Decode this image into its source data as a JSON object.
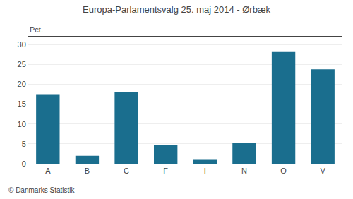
{
  "chart_data": {
    "type": "bar",
    "title": "Europa-Parlamentsvalg 25. maj 2014 - Ørbæk",
    "ylabel": "Pct.",
    "annotations": [
      "© Danmarks Statistik"
    ],
    "categories": [
      "A",
      "B",
      "C",
      "F",
      "I",
      "N",
      "O",
      "V"
    ],
    "values": [
      17.5,
      2.0,
      18.0,
      4.8,
      1.0,
      5.3,
      28.3,
      23.8
    ],
    "color": "#1a6e8e",
    "ylim": [
      0,
      32
    ],
    "yticks": [
      0,
      5,
      10,
      15,
      20,
      25,
      30
    ],
    "grid": true
  }
}
